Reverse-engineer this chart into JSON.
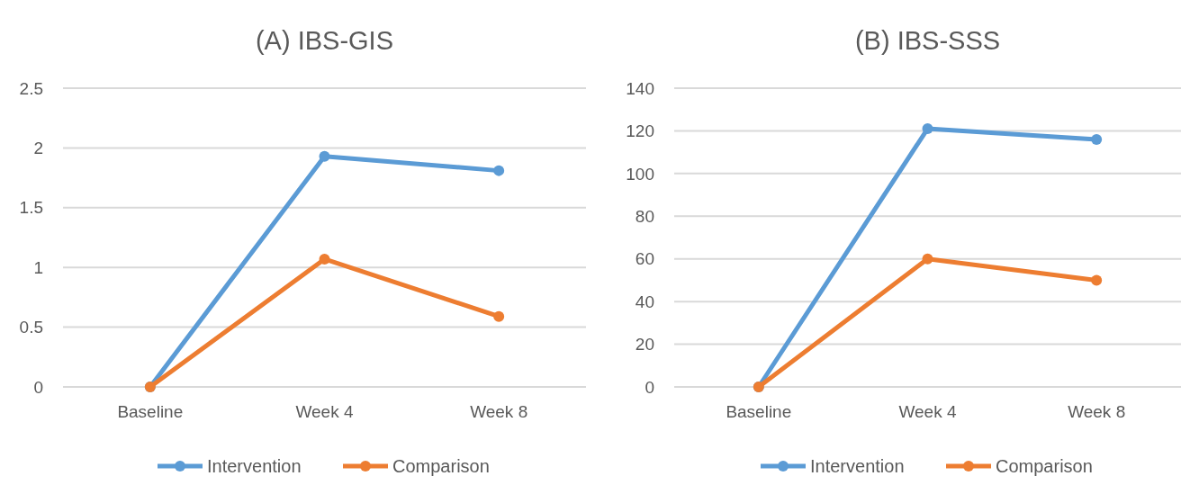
{
  "chart_data": [
    {
      "type": "line",
      "title": "(A) IBS-GIS",
      "categories": [
        "Baseline",
        "Week 4",
        "Week 8"
      ],
      "series": [
        {
          "name": "Intervention",
          "color": "#5b9bd5",
          "values": [
            0,
            1.93,
            1.81
          ]
        },
        {
          "name": "Comparison",
          "color": "#ed7d31",
          "values": [
            0,
            1.07,
            0.59
          ]
        }
      ],
      "ylim": [
        0,
        2.5
      ],
      "yticks": [
        0,
        0.5,
        1,
        1.5,
        2,
        2.5
      ],
      "grid": "y",
      "legend": "bottom",
      "marker": "circle",
      "line_style": "solid"
    },
    {
      "type": "line",
      "title": "(B) IBS-SSS",
      "categories": [
        "Baseline",
        "Week 4",
        "Week 8"
      ],
      "series": [
        {
          "name": "Intervention",
          "color": "#5b9bd5",
          "values": [
            0,
            121,
            116
          ]
        },
        {
          "name": "Comparison",
          "color": "#ed7d31",
          "values": [
            0,
            60,
            50
          ]
        }
      ],
      "ylim": [
        0,
        140
      ],
      "yticks": [
        0,
        20,
        40,
        60,
        80,
        100,
        120,
        140
      ],
      "grid": "y",
      "legend": "bottom",
      "marker": "circle",
      "line_style": "solid"
    }
  ]
}
